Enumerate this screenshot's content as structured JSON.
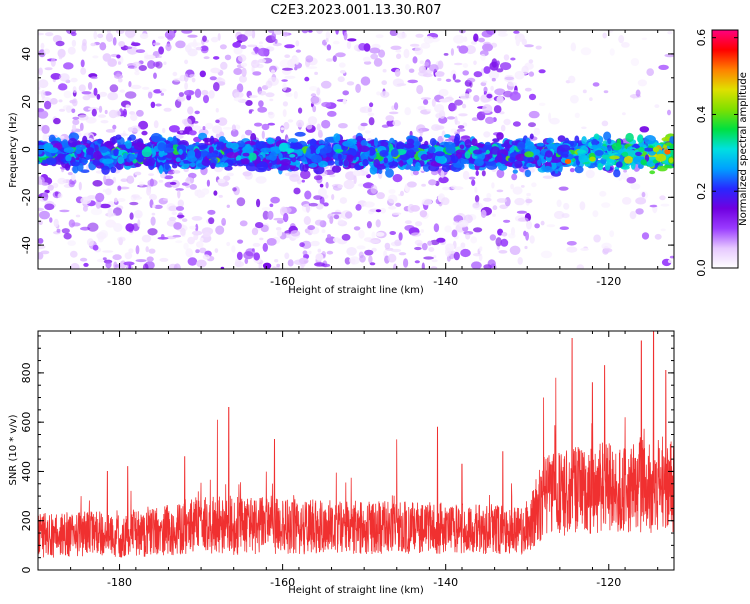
{
  "title": "C2E3.2023.001.13.30.R07",
  "chart_data": [
    {
      "type": "heatmap",
      "xlabel": "Height of straight line (km)",
      "ylabel": "Frequency (Hz)",
      "xlim": [
        -190,
        -112
      ],
      "ylim": [
        -50,
        50
      ],
      "xticks": [
        -180,
        -160,
        -140,
        -120
      ],
      "yticks": [
        -40,
        -20,
        0,
        20,
        40
      ],
      "colorbar": {
        "label": "Normalized spectral amplitude",
        "range": [
          0.0,
          0.62
        ],
        "ticks": [
          "0.0",
          "0.2",
          "0.4",
          "0.6"
        ],
        "tick_values": [
          0.0,
          0.2,
          0.4,
          0.6
        ],
        "colors": [
          "#ffffff",
          "#e6c8ff",
          "#9a3cff",
          "#7000e0",
          "#2828ff",
          "#00a0ff",
          "#00e0e0",
          "#00e040",
          "#80e000",
          "#e0e000",
          "#ff8000",
          "#ff0000",
          "#ff0080"
        ]
      },
      "band": {
        "center_hz": -2,
        "halfwidth_hz": 7
      },
      "strong_region": {
        "x_from": -128,
        "x_to": -112
      },
      "low_noise_region": {
        "x_from": -129,
        "x_to": -112
      }
    },
    {
      "type": "line",
      "xlabel": "Height of straight line (km)",
      "ylabel": "SNR (10 * v/v)",
      "xlim": [
        -190,
        -112
      ],
      "ylim": [
        0,
        970
      ],
      "xticks": [
        -180,
        -160,
        -140,
        -120
      ],
      "yticks": [
        0,
        200,
        400,
        600,
        800
      ],
      "color": "#f03030",
      "profile": [
        {
          "x": -190,
          "mean": 140,
          "spread": 90
        },
        {
          "x": -176,
          "mean": 150,
          "spread": 100
        },
        {
          "x": -170,
          "mean": 185,
          "spread": 120
        },
        {
          "x": -165,
          "mean": 180,
          "spread": 120
        },
        {
          "x": -155,
          "mean": 175,
          "spread": 110
        },
        {
          "x": -140,
          "mean": 170,
          "spread": 105
        },
        {
          "x": -130,
          "mean": 160,
          "spread": 95
        },
        {
          "x": -128,
          "mean": 300,
          "spread": 170
        },
        {
          "x": -120,
          "mean": 340,
          "spread": 190
        },
        {
          "x": -112,
          "mean": 350,
          "spread": 200
        }
      ],
      "peaks": [
        {
          "x": -190,
          "y": 300
        },
        {
          "x": -181.5,
          "y": 400
        },
        {
          "x": -179,
          "y": 420
        },
        {
          "x": -172,
          "y": 460
        },
        {
          "x": -168,
          "y": 610
        },
        {
          "x": -166.6,
          "y": 660
        },
        {
          "x": -161,
          "y": 530
        },
        {
          "x": -146,
          "y": 530
        },
        {
          "x": -141,
          "y": 580
        },
        {
          "x": -138,
          "y": 430
        },
        {
          "x": -133,
          "y": 480
        },
        {
          "x": -128,
          "y": 700
        },
        {
          "x": -126.5,
          "y": 780
        },
        {
          "x": -124.5,
          "y": 940
        },
        {
          "x": -122,
          "y": 760
        },
        {
          "x": -120.5,
          "y": 830
        },
        {
          "x": -118,
          "y": 620
        },
        {
          "x": -116,
          "y": 930
        },
        {
          "x": -114.5,
          "y": 970
        },
        {
          "x": -113,
          "y": 810
        }
      ]
    }
  ]
}
